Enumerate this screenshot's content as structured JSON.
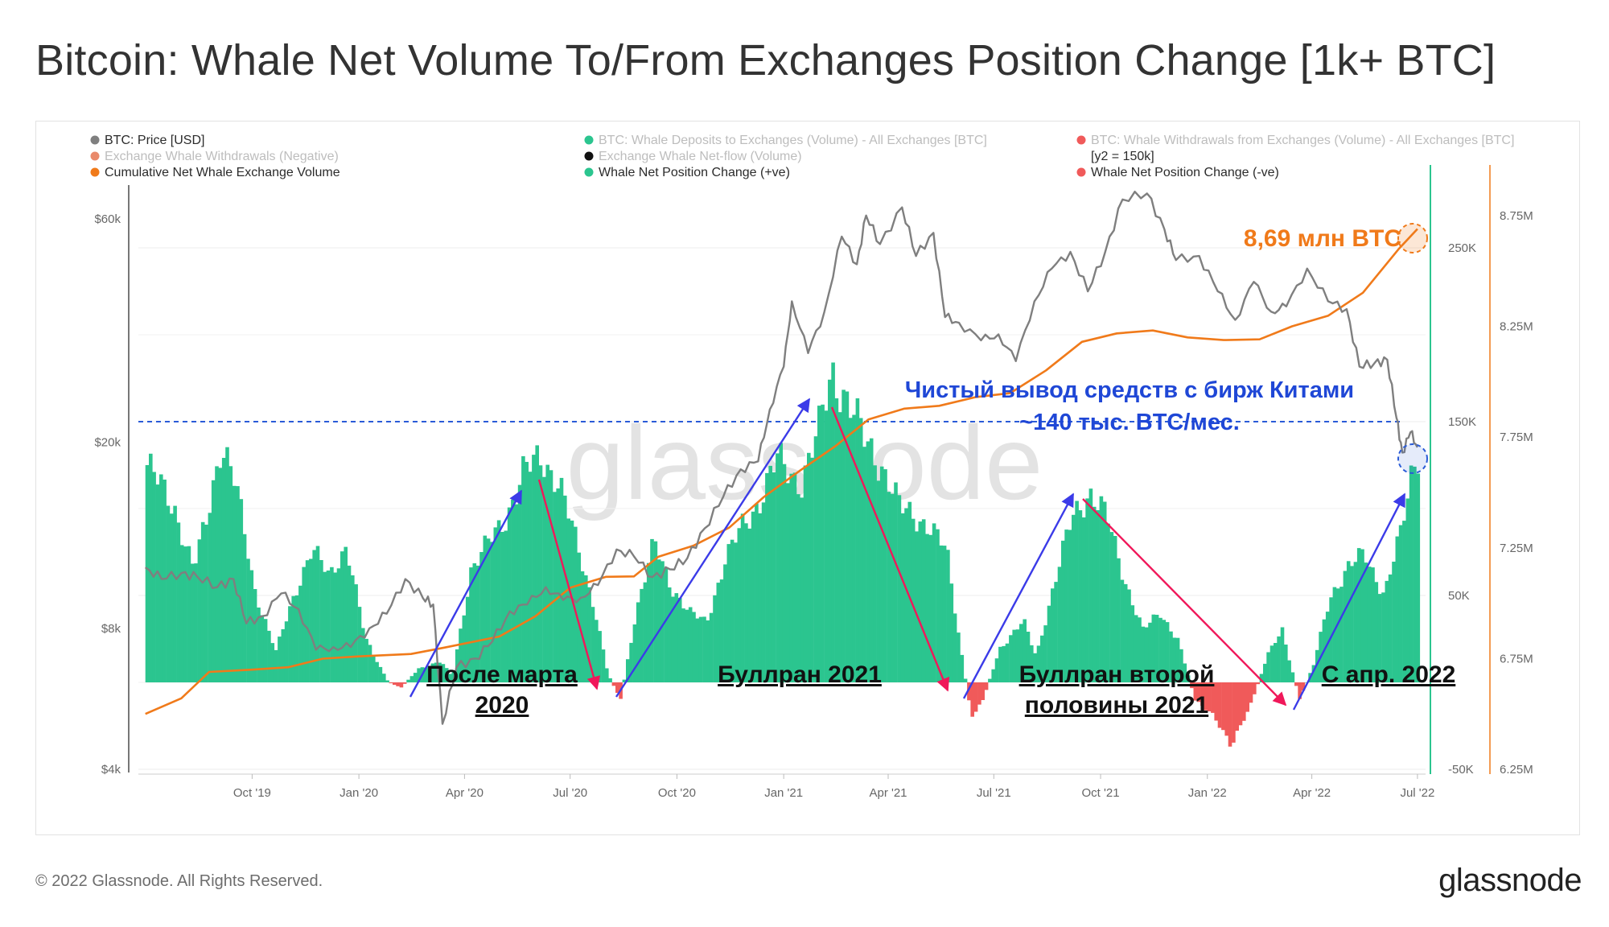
{
  "title": "Bitcoin: Whale Net Volume To/From Exchanges Position Change [1k+ BTC]",
  "footer": "© 2022 Glassnode. All Rights Reserved.",
  "brand": "glassnode",
  "watermark": "glassnode",
  "legend": [
    {
      "label": "BTC: Price [USD]",
      "color": "#7f7f7f",
      "faded": false
    },
    {
      "label": "BTC: Whale Deposits to Exchanges (Volume) - All Exchanges [BTC]",
      "color": "#2bc58f",
      "faded": true
    },
    {
      "label": "BTC: Whale Withdrawals from Exchanges (Volume) - All Exchanges [BTC]",
      "color": "#f05a5a",
      "faded": true
    },
    {
      "label": "Exchange Whale Withdrawals (Negative)",
      "color": "#e98a6b",
      "faded": true
    },
    {
      "label": "Exchange Whale Net-flow (Volume)",
      "color": "#111111",
      "faded": true
    },
    {
      "label": "[y2 = 150k]",
      "color": null,
      "faded": false
    },
    {
      "label": "Cumulative Net Whale Exchange Volume",
      "color": "#f07a1a",
      "faded": false
    },
    {
      "label": "Whale Net Position Change (+ve)",
      "color": "#2bc58f",
      "faded": false
    },
    {
      "label": "Whale Net Position Change (-ve)",
      "color": "#f05a5a",
      "faded": false
    }
  ],
  "annotations": {
    "cum_value": "8,69 млн BTC",
    "outflow_line1": "Чистый вывод средств с бирж Китами",
    "outflow_line2": "~140 тыс. BTC/мес.",
    "label_2020_line1": "После марта",
    "label_2020_line2": "2020",
    "label_2021": "Буллран 2021",
    "label_h2_line1": "Буллран второй",
    "label_h2_line2": "половины 2021",
    "label_2022": "С апр. 2022"
  },
  "colors": {
    "price": "#7f7f7f",
    "positive": "#2bc58f",
    "negative": "#f05a5a",
    "cumulative": "#f07a1a",
    "arrow_up": "#3b3be8",
    "arrow_down": "#f0185a",
    "reference_line": "#2a5bd7"
  },
  "chart_data": {
    "type": "line+area",
    "x_tick_labels": [
      "Oct '19",
      "Jan '20",
      "Apr '20",
      "Jul '20",
      "Oct '20",
      "Jan '21",
      "Apr '21",
      "Jul '21",
      "Oct '21",
      "Jan '22",
      "Apr '22",
      "Jul '22"
    ],
    "axes": {
      "price_left": {
        "scale": "log",
        "ticks": [
          {
            "value": 4000,
            "label": "$4k"
          },
          {
            "value": 8000,
            "label": "$8k"
          },
          {
            "value": 20000,
            "label": "$20k"
          },
          {
            "value": 60000,
            "label": "$60k"
          }
        ]
      },
      "position_change_right": {
        "scale": "linear",
        "range": [
          -50000,
          250000
        ],
        "ticks": [
          {
            "value": -50000,
            "label": "-50K"
          },
          {
            "value": 50000,
            "label": "50K"
          },
          {
            "value": 150000,
            "label": "150K"
          },
          {
            "value": 250000,
            "label": "250K"
          }
        ]
      },
      "cumulative_right": {
        "scale": "linear",
        "range": [
          6250000,
          8750000
        ],
        "ticks": [
          {
            "value": 6250000,
            "label": "6.25M"
          },
          {
            "value": 6750000,
            "label": "6.75M"
          },
          {
            "value": 7250000,
            "label": "7.25M"
          },
          {
            "value": 7750000,
            "label": "7.75M"
          },
          {
            "value": 8250000,
            "label": "8.25M"
          },
          {
            "value": 8750000,
            "label": "8.75M"
          }
        ]
      }
    },
    "reference_line_y2": 150000,
    "series": [
      {
        "name": "BTC: Price [USD]",
        "axis": "price_left",
        "points": [
          [
            "2019-07-01",
            10800
          ],
          [
            "2019-07-15",
            10200
          ],
          [
            "2019-08-01",
            10500
          ],
          [
            "2019-08-15",
            10300
          ],
          [
            "2019-09-01",
            9800
          ],
          [
            "2019-09-15",
            10200
          ],
          [
            "2019-09-26",
            8200
          ],
          [
            "2019-10-10",
            8500
          ],
          [
            "2019-10-26",
            9500
          ],
          [
            "2019-11-10",
            8800
          ],
          [
            "2019-11-25",
            7200
          ],
          [
            "2019-12-10",
            7300
          ],
          [
            "2019-12-25",
            7300
          ],
          [
            "2020-01-10",
            8000
          ],
          [
            "2020-01-25",
            8600
          ],
          [
            "2020-02-10",
            10200
          ],
          [
            "2020-02-25",
            9300
          ],
          [
            "2020-03-05",
            9000
          ],
          [
            "2020-03-13",
            5000
          ],
          [
            "2020-03-25",
            6600
          ],
          [
            "2020-04-10",
            6900
          ],
          [
            "2020-04-25",
            7500
          ],
          [
            "2020-05-10",
            8700
          ],
          [
            "2020-05-25",
            9000
          ],
          [
            "2020-06-10",
            9800
          ],
          [
            "2020-06-25",
            9200
          ],
          [
            "2020-07-10",
            9300
          ],
          [
            "2020-07-25",
            9900
          ],
          [
            "2020-08-10",
            11800
          ],
          [
            "2020-08-25",
            11400
          ],
          [
            "2020-09-10",
            10300
          ],
          [
            "2020-09-25",
            10700
          ],
          [
            "2020-10-10",
            11300
          ],
          [
            "2020-10-25",
            13100
          ],
          [
            "2020-11-10",
            15300
          ],
          [
            "2020-11-25",
            17500
          ],
          [
            "2020-12-10",
            18200
          ],
          [
            "2020-12-20",
            23500
          ],
          [
            "2021-01-01",
            29000
          ],
          [
            "2021-01-08",
            40000
          ],
          [
            "2021-01-22",
            31000
          ],
          [
            "2021-02-05",
            38000
          ],
          [
            "2021-02-20",
            55000
          ],
          [
            "2021-03-05",
            48000
          ],
          [
            "2021-03-13",
            61000
          ],
          [
            "2021-03-25",
            53000
          ],
          [
            "2021-04-13",
            63500
          ],
          [
            "2021-04-25",
            50000
          ],
          [
            "2021-05-10",
            56000
          ],
          [
            "2021-05-20",
            37000
          ],
          [
            "2021-06-01",
            36000
          ],
          [
            "2021-06-20",
            33000
          ],
          [
            "2021-07-05",
            34000
          ],
          [
            "2021-07-20",
            29800
          ],
          [
            "2021-08-05",
            40000
          ],
          [
            "2021-08-20",
            47000
          ],
          [
            "2021-09-05",
            51000
          ],
          [
            "2021-09-20",
            42000
          ],
          [
            "2021-10-05",
            51000
          ],
          [
            "2021-10-20",
            66000
          ],
          [
            "2021-11-10",
            68000
          ],
          [
            "2021-11-25",
            57000
          ],
          [
            "2021-12-05",
            49000
          ],
          [
            "2021-12-25",
            50000
          ],
          [
            "2022-01-10",
            42000
          ],
          [
            "2022-01-25",
            36500
          ],
          [
            "2022-02-10",
            44000
          ],
          [
            "2022-02-25",
            38000
          ],
          [
            "2022-03-10",
            39000
          ],
          [
            "2022-03-28",
            47000
          ],
          [
            "2022-04-15",
            40000
          ],
          [
            "2022-05-01",
            38500
          ],
          [
            "2022-05-12",
            29000
          ],
          [
            "2022-05-25",
            29500
          ],
          [
            "2022-06-05",
            30000
          ],
          [
            "2022-06-13",
            22500
          ],
          [
            "2022-06-18",
            19000
          ],
          [
            "2022-06-25",
            21000
          ],
          [
            "2022-07-01",
            19500
          ]
        ]
      },
      {
        "name": "Cumulative Net Whale Exchange Volume",
        "axis": "cumulative_right",
        "points": [
          [
            "2019-07-01",
            6500000
          ],
          [
            "2019-08-01",
            6580000
          ],
          [
            "2019-08-25",
            6680000
          ],
          [
            "2019-10-01",
            6700000
          ],
          [
            "2019-11-01",
            6720000
          ],
          [
            "2019-12-01",
            6740000
          ],
          [
            "2020-01-01",
            6760000
          ],
          [
            "2020-02-15",
            6780000
          ],
          [
            "2020-03-15",
            6790000
          ],
          [
            "2020-05-01",
            6850000
          ],
          [
            "2020-06-01",
            6950000
          ],
          [
            "2020-07-01",
            7060000
          ],
          [
            "2020-08-01",
            7120000
          ],
          [
            "2020-08-25",
            7130000
          ],
          [
            "2020-09-15",
            7200000
          ],
          [
            "2020-10-15",
            7260000
          ],
          [
            "2020-11-15",
            7350000
          ],
          [
            "2020-12-15",
            7470000
          ],
          [
            "2021-01-15",
            7600000
          ],
          [
            "2021-02-15",
            7720000
          ],
          [
            "2021-03-15",
            7820000
          ],
          [
            "2021-04-15",
            7880000
          ],
          [
            "2021-05-15",
            7900000
          ],
          [
            "2021-06-15",
            7920000
          ],
          [
            "2021-07-15",
            7950000
          ],
          [
            "2021-08-15",
            8060000
          ],
          [
            "2021-09-15",
            8170000
          ],
          [
            "2021-10-15",
            8220000
          ],
          [
            "2021-11-15",
            8240000
          ],
          [
            "2021-12-15",
            8190000
          ],
          [
            "2022-01-15",
            8190000
          ],
          [
            "2022-02-15",
            8200000
          ],
          [
            "2022-03-15",
            8240000
          ],
          [
            "2022-04-15",
            8300000
          ],
          [
            "2022-05-15",
            8410000
          ],
          [
            "2022-06-15",
            8590000
          ],
          [
            "2022-07-01",
            8690000
          ]
        ]
      },
      {
        "name": "Whale Net Position Change (+ve / -ve)",
        "axis": "position_change_right",
        "points": [
          [
            "2019-07-01",
            125000
          ],
          [
            "2019-07-25",
            100000
          ],
          [
            "2019-08-10",
            65000
          ],
          [
            "2019-08-22",
            95000
          ],
          [
            "2019-09-03",
            140000
          ],
          [
            "2019-09-15",
            115000
          ],
          [
            "2019-10-01",
            55000
          ],
          [
            "2019-10-20",
            18000
          ],
          [
            "2019-11-10",
            60000
          ],
          [
            "2019-11-20",
            78000
          ],
          [
            "2019-12-05",
            60000
          ],
          [
            "2019-12-20",
            80000
          ],
          [
            "2020-01-05",
            25000
          ],
          [
            "2020-01-25",
            0
          ],
          [
            "2020-02-05",
            -3000
          ],
          [
            "2020-02-20",
            8000
          ],
          [
            "2020-03-10",
            12000
          ],
          [
            "2020-03-20",
            3000
          ],
          [
            "2020-04-05",
            65000
          ],
          [
            "2020-04-20",
            80000
          ],
          [
            "2020-05-05",
            95000
          ],
          [
            "2020-05-20",
            120000
          ],
          [
            "2020-06-05",
            130000
          ],
          [
            "2020-06-20",
            115000
          ],
          [
            "2020-07-05",
            80000
          ],
          [
            "2020-07-20",
            45000
          ],
          [
            "2020-08-01",
            5000
          ],
          [
            "2020-08-12",
            -10000
          ],
          [
            "2020-08-25",
            40000
          ],
          [
            "2020-09-10",
            80000
          ],
          [
            "2020-09-25",
            55000
          ],
          [
            "2020-10-10",
            40000
          ],
          [
            "2020-10-25",
            35000
          ],
          [
            "2020-11-10",
            70000
          ],
          [
            "2020-11-25",
            90000
          ],
          [
            "2020-12-10",
            105000
          ],
          [
            "2020-12-25",
            128000
          ],
          [
            "2021-01-15",
            115000
          ],
          [
            "2021-01-30",
            145000
          ],
          [
            "2021-02-10",
            180000
          ],
          [
            "2021-02-25",
            160000
          ],
          [
            "2021-03-10",
            140000
          ],
          [
            "2021-03-25",
            125000
          ],
          [
            "2021-04-10",
            100000
          ],
          [
            "2021-04-25",
            95000
          ],
          [
            "2021-05-05",
            90000
          ],
          [
            "2021-05-20",
            75000
          ],
          [
            "2021-06-01",
            20000
          ],
          [
            "2021-06-10",
            -20000
          ],
          [
            "2021-06-20",
            -10000
          ],
          [
            "2021-07-05",
            20000
          ],
          [
            "2021-07-25",
            35000
          ],
          [
            "2021-08-05",
            15000
          ],
          [
            "2021-08-20",
            55000
          ],
          [
            "2021-09-05",
            95000
          ],
          [
            "2021-09-20",
            110000
          ],
          [
            "2021-10-05",
            95000
          ],
          [
            "2021-10-20",
            60000
          ],
          [
            "2021-11-05",
            30000
          ],
          [
            "2021-11-20",
            40000
          ],
          [
            "2021-12-05",
            25000
          ],
          [
            "2021-12-20",
            -10000
          ],
          [
            "2022-01-05",
            -20000
          ],
          [
            "2022-01-20",
            -35000
          ],
          [
            "2022-02-05",
            -15000
          ],
          [
            "2022-02-20",
            15000
          ],
          [
            "2022-03-05",
            30000
          ],
          [
            "2022-03-20",
            -10000
          ],
          [
            "2022-04-01",
            10000
          ],
          [
            "2022-04-15",
            50000
          ],
          [
            "2022-05-01",
            65000
          ],
          [
            "2022-05-15",
            75000
          ],
          [
            "2022-06-01",
            50000
          ],
          [
            "2022-06-15",
            85000
          ],
          [
            "2022-06-25",
            125000
          ],
          [
            "2022-07-01",
            135000
          ]
        ]
      }
    ]
  }
}
